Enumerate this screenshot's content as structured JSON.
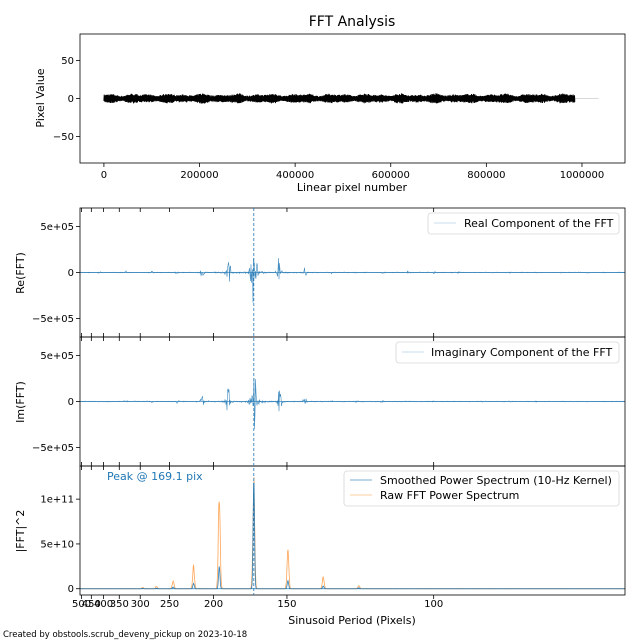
{
  "title": "FFT Analysis",
  "footer": "Created by obstools.scrub_deveny_pickup on 2023-10-18",
  "colors": {
    "raw_signal": "#000000",
    "fft": "#1f77b4",
    "raw_power": "#ff7f0e",
    "peak_line": "#1f77b4",
    "zero_line": "#cccccc"
  },
  "chart_data": [
    {
      "id": "pixel-panel",
      "type": "line",
      "xlabel": "Linear pixel number",
      "ylabel": "Pixel Value",
      "xlim": [
        -50000,
        1090000
      ],
      "ylim": [
        -85,
        85
      ],
      "xticks": [
        0,
        200000,
        400000,
        600000,
        800000,
        1000000
      ],
      "xtick_labels": [
        "0",
        "200000",
        "400000",
        "600000",
        "800000",
        "1000000"
      ],
      "yticks": [
        -50,
        0,
        50
      ],
      "ytick_labels": [
        "−50",
        "0",
        "50"
      ],
      "signal_range": [
        0,
        985000
      ],
      "zero_line_end": 1035000,
      "signal_amplitude": 7
    },
    {
      "id": "real-panel",
      "type": "line",
      "ylabel": "Re(FFT)",
      "legend": "Real Component of the FFT",
      "legend_position": "top-right",
      "ylim": [
        -700000,
        700000
      ],
      "yticks": [
        -500000,
        0,
        500000
      ],
      "ytick_labels": [
        "−5e+05",
        "0",
        "5e+05"
      ]
    },
    {
      "id": "imag-panel",
      "type": "line",
      "ylabel": "Im(FFT)",
      "legend": "Imaginary Component of the FFT",
      "legend_position": "top-right",
      "ylim": [
        -700000,
        700000
      ],
      "yticks": [
        -500000,
        0,
        500000
      ],
      "ytick_labels": [
        "−5e+05",
        "0",
        "5e+05"
      ]
    },
    {
      "id": "power-panel",
      "type": "line",
      "xlabel": "Sinusoid Period (Pixels)",
      "ylabel": "|FFT|^2",
      "legend": [
        "Smoothed Power Spectrum (10-Hz Kernel)",
        "Raw FFT Power Spectrum"
      ],
      "legend_position": "top-right",
      "annotation": "Peak @ 169.1 pix",
      "peak_period": 169.1,
      "ylim": [
        -7000000000,
        137000000000
      ],
      "yticks": [
        0,
        50000000000,
        100000000000
      ],
      "ytick_labels": [
        "0",
        "5e+10",
        "1e+11"
      ],
      "xticks": [
        500,
        450,
        400,
        350,
        300,
        250,
        200,
        150,
        100
      ],
      "xtick_labels": [
        "500",
        "450",
        "400",
        "350",
        "300",
        "250",
        "200",
        "150",
        "100"
      ],
      "harmonic_peaks": [
        {
          "period": 195.0,
          "raw": 122000000000,
          "smoothed": 25000000000
        },
        {
          "period": 169.1,
          "raw": 133000000000,
          "smoothed": 123000000000
        },
        {
          "period": 220.0,
          "raw": 28000000000,
          "smoothed": 6000000000
        },
        {
          "period": 149.5,
          "raw": 45000000000,
          "smoothed": 9000000000
        },
        {
          "period": 133.5,
          "raw": 14000000000,
          "smoothed": 3000000000
        },
        {
          "period": 245.0,
          "raw": 9000000000,
          "smoothed": 2000000000
        },
        {
          "period": 120.5,
          "raw": 4000000000,
          "smoothed": 1000000000
        },
        {
          "period": 270.0,
          "raw": 3000000000,
          "smoothed": 600000000
        },
        {
          "period": 295.0,
          "raw": 1500000000,
          "smoothed": 300000000
        }
      ]
    }
  ]
}
